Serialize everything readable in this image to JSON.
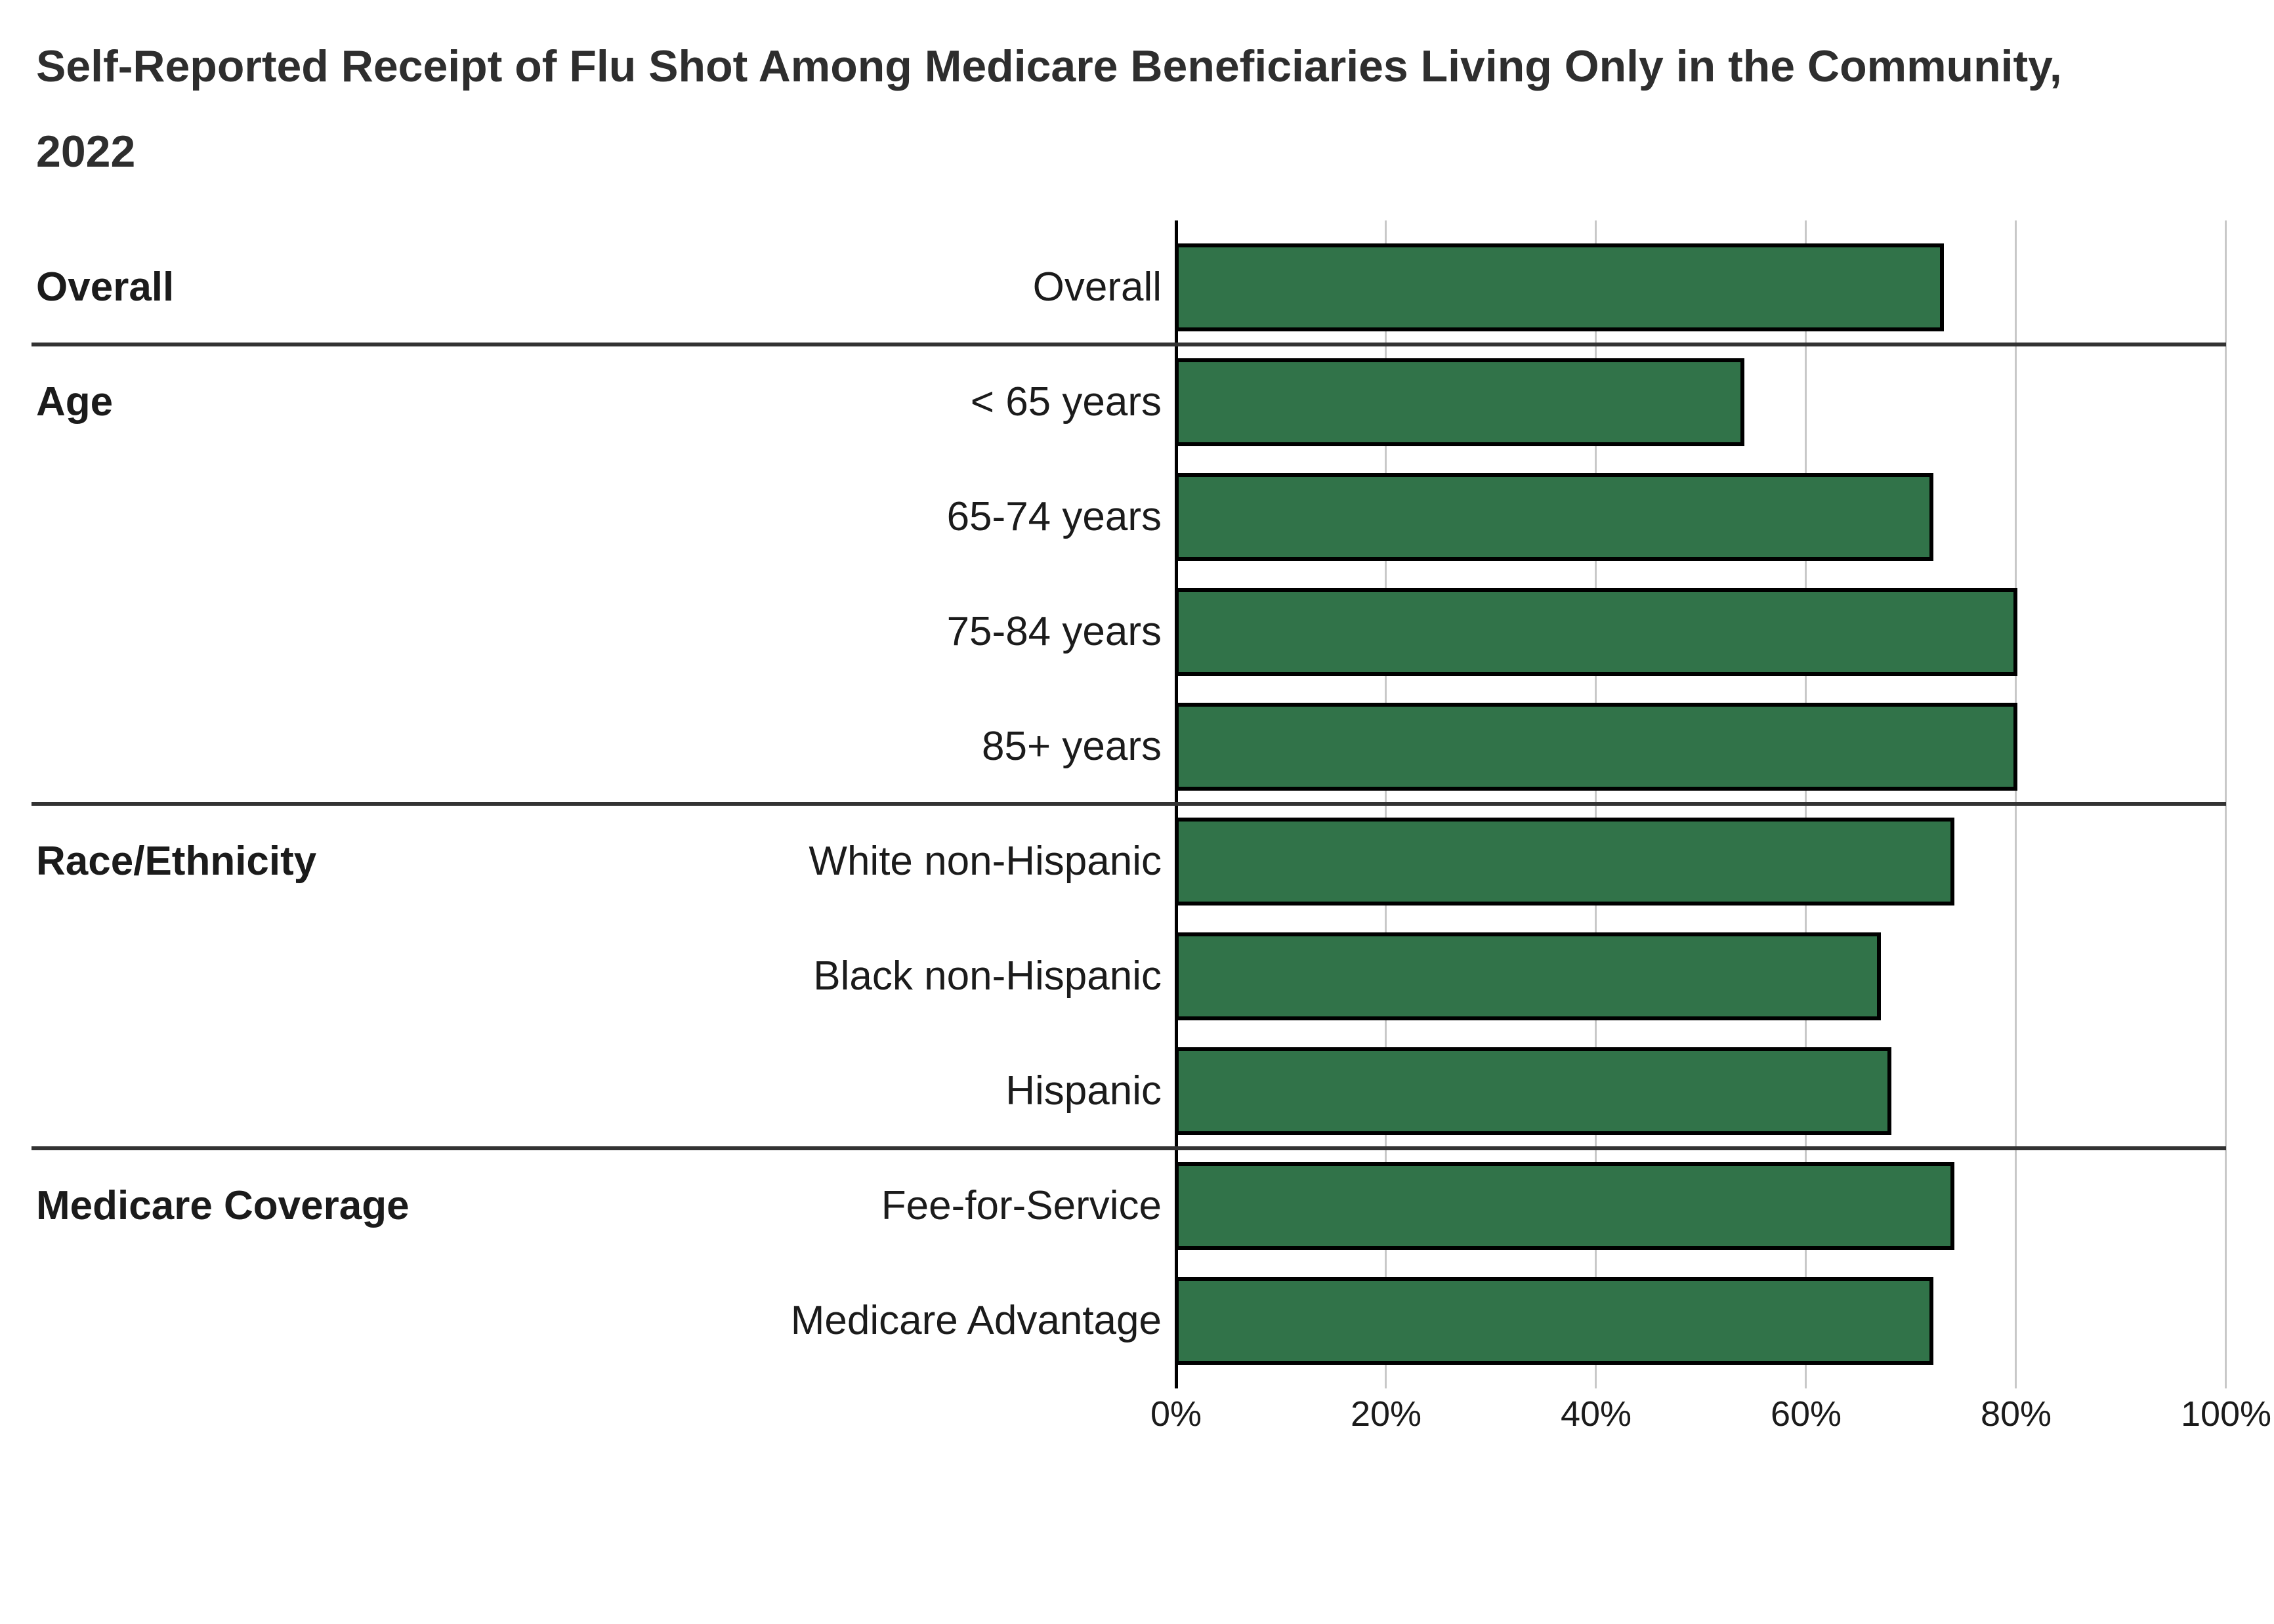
{
  "title": "Self-Reported Receipt of Flu Shot Among Medicare Beneficiaries Living Only in the Community, 2022",
  "colors": {
    "bar_fill": "#317349",
    "bar_border": "#000000",
    "gridline": "#c8c8c8",
    "axis_line": "#000000",
    "separator": "#333333",
    "title_text": "#2e2e2e",
    "label_text": "#1b1b1b",
    "background": "#ffffff"
  },
  "chart_data": {
    "type": "bar",
    "orientation": "horizontal",
    "title": "Self-Reported Receipt of Flu Shot Among Medicare Beneficiaries Living Only in the Community, 2022",
    "xlabel": "",
    "ylabel": "",
    "value_unit": "percent",
    "xlim": [
      0,
      100
    ],
    "x_tick_values": [
      0,
      20,
      40,
      60,
      80,
      100
    ],
    "x_tick_labels": [
      "0%",
      "20%",
      "40%",
      "60%",
      "80%",
      "100%"
    ],
    "grid": true,
    "legend": "none",
    "groups": [
      {
        "label": "Overall",
        "rows": [
          {
            "label": "Overall",
            "value": 73
          }
        ]
      },
      {
        "label": "Age",
        "rows": [
          {
            "label": "< 65 years",
            "value": 54
          },
          {
            "label": "65-74 years",
            "value": 72
          },
          {
            "label": "75-84 years",
            "value": 80
          },
          {
            "label": "85+ years",
            "value": 80
          }
        ]
      },
      {
        "label": "Race/Ethnicity",
        "rows": [
          {
            "label": "White non-Hispanic",
            "value": 74
          },
          {
            "label": "Black non-Hispanic",
            "value": 67
          },
          {
            "label": "Hispanic",
            "value": 68
          }
        ]
      },
      {
        "label": "Medicare Coverage",
        "rows": [
          {
            "label": "Fee-for-Service",
            "value": 74
          },
          {
            "label": "Medicare Advantage",
            "value": 72
          }
        ]
      }
    ]
  }
}
